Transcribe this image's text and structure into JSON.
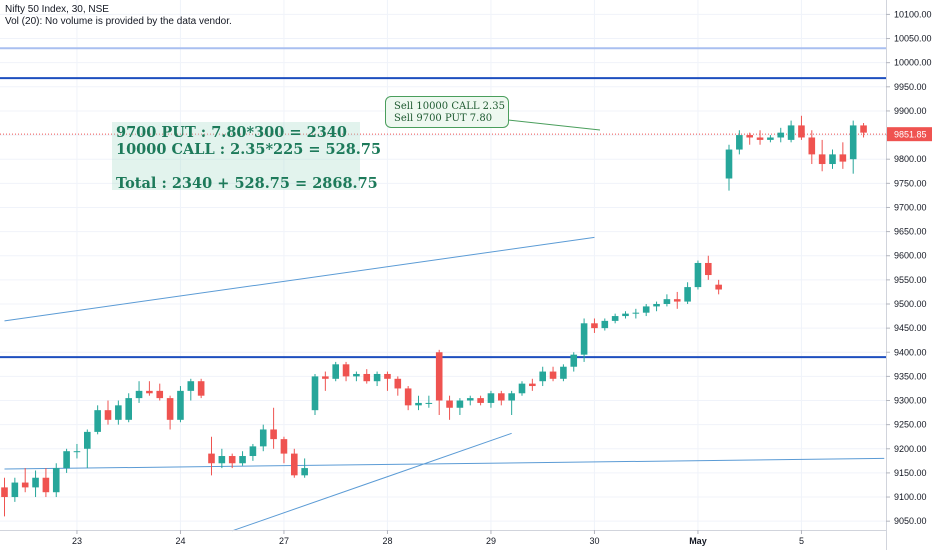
{
  "header": {
    "title": "Nifty 50 Index, 30, NSE",
    "volume_note": "Vol (20): No volume is provided by the data vendor."
  },
  "colors": {
    "up": "#26a69a",
    "down": "#ef5350",
    "hline": "#1e4fbf",
    "hline_light": "#a9bff0",
    "trend": "#5b9bd5",
    "price_line": "#ef5350"
  },
  "calc_note": {
    "line1": "9700 PUT : 7.80*300 = 2340",
    "line2": "10000 CALL : 2.35*225 = 528.75",
    "line3": "Total : 2340 + 528.75 = 2868.75"
  },
  "callout": {
    "line1": "Sell 10000 CALL 2.35",
    "line2": "Sell 9700 PUT 7.80"
  },
  "chart_data": {
    "type": "candlestick",
    "title": "Nifty 50 Index, 30, NSE",
    "ylim": [
      9030,
      10130
    ],
    "y_ticks": [
      9050,
      9100,
      9150,
      9200,
      9250,
      9300,
      9350,
      9400,
      9450,
      9500,
      9550,
      9600,
      9650,
      9700,
      9750,
      9800,
      9850,
      9900,
      9950,
      10000,
      10050,
      10100
    ],
    "y_tick_labels": [
      "9050.00",
      "9100.00",
      "9150.00",
      "9200.00",
      "9250.00",
      "9300.00",
      "9350.00",
      "9400.00",
      "9450.00",
      "9500.00",
      "9550.00",
      "9600.00",
      "9650.00",
      "9700.00",
      "9750.00",
      "9800.00",
      "9850.00",
      "9900.00",
      "9950.00",
      "10000.00",
      "10050.00",
      "10100.00"
    ],
    "x_labels": [
      {
        "label": "23",
        "bar": 7
      },
      {
        "label": "24",
        "bar": 17
      },
      {
        "label": "27",
        "bar": 27
      },
      {
        "label": "28",
        "bar": 37
      },
      {
        "label": "29",
        "bar": 47
      },
      {
        "label": "30",
        "bar": 57
      },
      {
        "label": "May",
        "bar": 67
      },
      {
        "label": "5",
        "bar": 77
      }
    ],
    "current_price": 9851.85,
    "current_price_label": "9851.85",
    "horizontal_levels": [
      {
        "value": 10030,
        "style": "light"
      },
      {
        "value": 9968,
        "style": "heavy"
      },
      {
        "value": 9390,
        "style": "heavy"
      }
    ],
    "trend_lines": [
      {
        "from": [
          0,
          9465
        ],
        "to": [
          57,
          9638
        ]
      },
      {
        "from": [
          0,
          9158
        ],
        "to": [
          85,
          9180
        ]
      },
      {
        "from": [
          22,
          9030
        ],
        "to": [
          49,
          9232
        ]
      }
    ],
    "candles": [
      {
        "o": 9120,
        "h": 9140,
        "l": 9060,
        "c": 9100
      },
      {
        "o": 9100,
        "h": 9140,
        "l": 9090,
        "c": 9130
      },
      {
        "o": 9130,
        "h": 9160,
        "l": 9110,
        "c": 9120
      },
      {
        "o": 9120,
        "h": 9155,
        "l": 9100,
        "c": 9140
      },
      {
        "o": 9140,
        "h": 9160,
        "l": 9100,
        "c": 9110
      },
      {
        "o": 9110,
        "h": 9170,
        "l": 9100,
        "c": 9160
      },
      {
        "o": 9160,
        "h": 9200,
        "l": 9150,
        "c": 9195
      },
      {
        "o": 9195,
        "h": 9210,
        "l": 9180,
        "c": 9195
      },
      {
        "o": 9200,
        "h": 9240,
        "l": 9160,
        "c": 9235
      },
      {
        "o": 9235,
        "h": 9290,
        "l": 9230,
        "c": 9280
      },
      {
        "o": 9280,
        "h": 9300,
        "l": 9250,
        "c": 9260
      },
      {
        "o": 9260,
        "h": 9300,
        "l": 9250,
        "c": 9290
      },
      {
        "o": 9260,
        "h": 9315,
        "l": 9255,
        "c": 9305
      },
      {
        "o": 9305,
        "h": 9340,
        "l": 9295,
        "c": 9320
      },
      {
        "o": 9320,
        "h": 9340,
        "l": 9310,
        "c": 9315
      },
      {
        "o": 9320,
        "h": 9335,
        "l": 9300,
        "c": 9305
      },
      {
        "o": 9305,
        "h": 9310,
        "l": 9240,
        "c": 9260
      },
      {
        "o": 9260,
        "h": 9330,
        "l": 9255,
        "c": 9320
      },
      {
        "o": 9320,
        "h": 9345,
        "l": 9300,
        "c": 9340
      },
      {
        "o": 9340,
        "h": 9345,
        "l": 9305,
        "c": 9310
      },
      {
        "o": 9190,
        "h": 9225,
        "l": 9145,
        "c": 9170
      },
      {
        "o": 9170,
        "h": 9200,
        "l": 9160,
        "c": 9185
      },
      {
        "o": 9185,
        "h": 9190,
        "l": 9160,
        "c": 9170
      },
      {
        "o": 9170,
        "h": 9195,
        "l": 9165,
        "c": 9185
      },
      {
        "o": 9185,
        "h": 9210,
        "l": 9175,
        "c": 9205
      },
      {
        "o": 9205,
        "h": 9250,
        "l": 9195,
        "c": 9240
      },
      {
        "o": 9240,
        "h": 9285,
        "l": 9200,
        "c": 9220
      },
      {
        "o": 9220,
        "h": 9225,
        "l": 9170,
        "c": 9190
      },
      {
        "o": 9190,
        "h": 9200,
        "l": 9140,
        "c": 9145
      },
      {
        "o": 9145,
        "h": 9180,
        "l": 9140,
        "c": 9160
      },
      {
        "o": 9280,
        "h": 9355,
        "l": 9270,
        "c": 9350
      },
      {
        "o": 9350,
        "h": 9360,
        "l": 9320,
        "c": 9345
      },
      {
        "o": 9345,
        "h": 9380,
        "l": 9340,
        "c": 9375
      },
      {
        "o": 9375,
        "h": 9380,
        "l": 9340,
        "c": 9350
      },
      {
        "o": 9350,
        "h": 9360,
        "l": 9340,
        "c": 9355
      },
      {
        "o": 9355,
        "h": 9365,
        "l": 9335,
        "c": 9340
      },
      {
        "o": 9340,
        "h": 9360,
        "l": 9330,
        "c": 9355
      },
      {
        "o": 9355,
        "h": 9360,
        "l": 9320,
        "c": 9345
      },
      {
        "o": 9345,
        "h": 9350,
        "l": 9310,
        "c": 9325
      },
      {
        "o": 9325,
        "h": 9330,
        "l": 9280,
        "c": 9290
      },
      {
        "o": 9290,
        "h": 9310,
        "l": 9280,
        "c": 9295
      },
      {
        "o": 9295,
        "h": 9310,
        "l": 9285,
        "c": 9295
      },
      {
        "o": 9400,
        "h": 9405,
        "l": 9270,
        "c": 9300
      },
      {
        "o": 9300,
        "h": 9310,
        "l": 9260,
        "c": 9285
      },
      {
        "o": 9285,
        "h": 9305,
        "l": 9270,
        "c": 9300
      },
      {
        "o": 9300,
        "h": 9310,
        "l": 9290,
        "c": 9305
      },
      {
        "o": 9305,
        "h": 9310,
        "l": 9290,
        "c": 9295
      },
      {
        "o": 9295,
        "h": 9320,
        "l": 9285,
        "c": 9315
      },
      {
        "o": 9315,
        "h": 9320,
        "l": 9290,
        "c": 9300
      },
      {
        "o": 9300,
        "h": 9320,
        "l": 9270,
        "c": 9315
      },
      {
        "o": 9315,
        "h": 9340,
        "l": 9310,
        "c": 9335
      },
      {
        "o": 9335,
        "h": 9345,
        "l": 9320,
        "c": 9330
      },
      {
        "o": 9340,
        "h": 9370,
        "l": 9330,
        "c": 9360
      },
      {
        "o": 9360,
        "h": 9370,
        "l": 9340,
        "c": 9345
      },
      {
        "o": 9345,
        "h": 9375,
        "l": 9340,
        "c": 9370
      },
      {
        "o": 9370,
        "h": 9400,
        "l": 9360,
        "c": 9395
      },
      {
        "o": 9395,
        "h": 9470,
        "l": 9380,
        "c": 9460
      },
      {
        "o": 9460,
        "h": 9470,
        "l": 9440,
        "c": 9450
      },
      {
        "o": 9450,
        "h": 9470,
        "l": 9445,
        "c": 9465
      },
      {
        "o": 9465,
        "h": 9480,
        "l": 9460,
        "c": 9475
      },
      {
        "o": 9475,
        "h": 9485,
        "l": 9470,
        "c": 9480
      },
      {
        "o": 9480,
        "h": 9490,
        "l": 9470,
        "c": 9482
      },
      {
        "o": 9482,
        "h": 9500,
        "l": 9475,
        "c": 9495
      },
      {
        "o": 9495,
        "h": 9505,
        "l": 9485,
        "c": 9500
      },
      {
        "o": 9500,
        "h": 9520,
        "l": 9495,
        "c": 9510
      },
      {
        "o": 9510,
        "h": 9525,
        "l": 9490,
        "c": 9505
      },
      {
        "o": 9505,
        "h": 9545,
        "l": 9500,
        "c": 9535
      },
      {
        "o": 9535,
        "h": 9590,
        "l": 9530,
        "c": 9585
      },
      {
        "o": 9585,
        "h": 9600,
        "l": 9550,
        "c": 9560
      },
      {
        "o": 9540,
        "h": 9550,
        "l": 9520,
        "c": 9530
      },
      {
        "o": 9760,
        "h": 9830,
        "l": 9735,
        "c": 9820
      },
      {
        "o": 9820,
        "h": 9860,
        "l": 9810,
        "c": 9850
      },
      {
        "o": 9850,
        "h": 9855,
        "l": 9830,
        "c": 9845
      },
      {
        "o": 9845,
        "h": 9860,
        "l": 9830,
        "c": 9840
      },
      {
        "o": 9840,
        "h": 9850,
        "l": 9835,
        "c": 9845
      },
      {
        "o": 9845,
        "h": 9865,
        "l": 9835,
        "c": 9855
      },
      {
        "o": 9840,
        "h": 9880,
        "l": 9835,
        "c": 9870
      },
      {
        "o": 9870,
        "h": 9890,
        "l": 9840,
        "c": 9845
      },
      {
        "o": 9845,
        "h": 9860,
        "l": 9790,
        "c": 9810
      },
      {
        "o": 9810,
        "h": 9840,
        "l": 9775,
        "c": 9790
      },
      {
        "o": 9790,
        "h": 9820,
        "l": 9780,
        "c": 9810
      },
      {
        "o": 9810,
        "h": 9835,
        "l": 9780,
        "c": 9795
      },
      {
        "o": 9800,
        "h": 9880,
        "l": 9770,
        "c": 9870
      },
      {
        "o": 9870,
        "h": 9875,
        "l": 9845,
        "c": 9855
      }
    ]
  }
}
